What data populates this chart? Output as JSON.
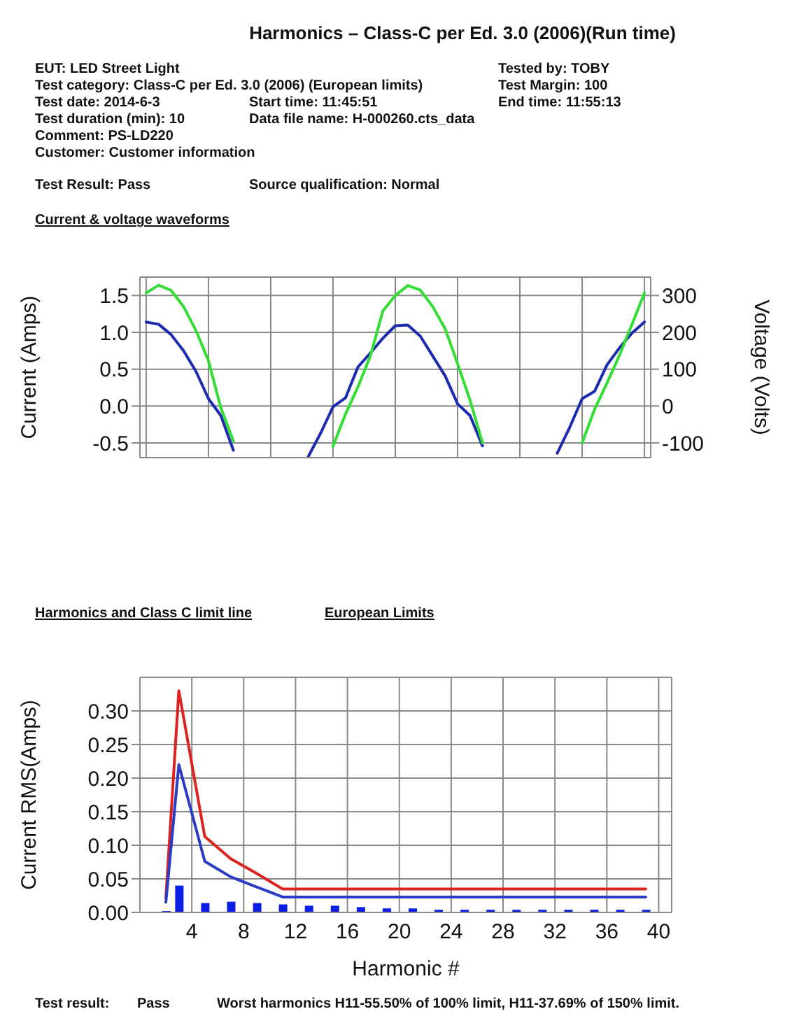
{
  "chart_data": [
    {
      "type": "line",
      "title": "Harmonics – Class-C per Ed. 3.0 (2006)(Run time)",
      "subtitle": "Current & voltage waveforms",
      "annotations": [
        "EUT: LED Street Light",
        "Tested by: TOBY",
        "Test category: Class-C per Ed. 3.0 (2006) (European limits)",
        "Test Margin: 100",
        "Test date: 2014-6-3",
        "Start time: 11:45:51",
        "End time: 11:55:13",
        "Test duration (min): 10",
        "Data file name: H-000260.cts_data",
        "Comment: PS-LD220",
        "Customer: Customer information",
        "Test Result: Pass",
        "Source qualification: Normal"
      ],
      "ylabel": "Current (Amps)",
      "y2label": "Voltage (Volts)",
      "categories": [
        null,
        null,
        null,
        null,
        null,
        null,
        null,
        null,
        null,
        null,
        null,
        null,
        null,
        null,
        null,
        null,
        null,
        null,
        null,
        null,
        null,
        null,
        null,
        null,
        null,
        null,
        null,
        null,
        null,
        null,
        null,
        null,
        null,
        null,
        null,
        null,
        null,
        null,
        null,
        null,
        null
      ],
      "ylim": [
        -0.7,
        1.75
      ],
      "yticks": [
        -0.5,
        {
          "value": 0,
          "label": "0.0"
        },
        0.5,
        {
          "value": 1,
          "label": "1.0"
        },
        1.5
      ],
      "y2lim": [
        -140,
        350
      ],
      "y2ticks": [
        -100,
        0,
        100,
        200,
        300
      ],
      "grid": true,
      "marker": "none",
      "series": [
        {
          "color": "#1c2bb0",
          "values": [
            1.14,
            1.11,
            0.97,
            0.75,
            0.47,
            0.1,
            -0.13,
            -0.6,
            null,
            null,
            null,
            null,
            null,
            null,
            null,
            null,
            null,
            null,
            null,
            null,
            null,
            null,
            null,
            null,
            null,
            null,
            null,
            null,
            null,
            null,
            null,
            null,
            null,
            null,
            null,
            null,
            null,
            null,
            null,
            null,
            null
          ]
        },
        {
          "color": "#1c2bb0",
          "values": [
            null,
            null,
            null,
            null,
            null,
            null,
            null,
            null,
            null,
            null,
            null,
            null,
            null,
            -0.69,
            -0.37,
            -0.01,
            0.11,
            0.53,
            0.72,
            0.92,
            1.09,
            1.1,
            0.95,
            0.68,
            0.41,
            0.03,
            -0.13,
            -0.54,
            null,
            null,
            null,
            null,
            null,
            null,
            null,
            null,
            null,
            null,
            null,
            null,
            null
          ]
        },
        {
          "color": "#1c2bb0",
          "values": [
            null,
            null,
            null,
            null,
            null,
            null,
            null,
            null,
            null,
            null,
            null,
            null,
            null,
            null,
            null,
            null,
            null,
            null,
            null,
            null,
            null,
            null,
            null,
            null,
            null,
            null,
            null,
            null,
            null,
            null,
            null,
            null,
            null,
            -0.64,
            -0.29,
            0.1,
            0.2,
            0.56,
            0.79,
            0.99,
            1.14
          ]
        },
        {
          "color": "#33dd33",
          "axis": "y2",
          "values": [
            307,
            328,
            314,
            270,
            205,
            123,
            -5,
            -95,
            null,
            null,
            null,
            null,
            null,
            null,
            null,
            null,
            null,
            null,
            null,
            null,
            null,
            null,
            null,
            null,
            null,
            null,
            null,
            null,
            null,
            null,
            null,
            null,
            null,
            null,
            null,
            null,
            null,
            null,
            null,
            null,
            null
          ]
        },
        {
          "color": "#33dd33",
          "axis": "y2",
          "values": [
            null,
            null,
            null,
            null,
            null,
            null,
            null,
            null,
            null,
            null,
            null,
            null,
            null,
            null,
            null,
            -109,
            -22,
            52,
            136,
            258,
            300,
            327,
            315,
            270,
            210,
            115,
            16,
            -100,
            null,
            null,
            null,
            null,
            null,
            null,
            null,
            null,
            null,
            null,
            null,
            null,
            null
          ]
        },
        {
          "color": "#33dd33",
          "axis": "y2",
          "values": [
            null,
            null,
            null,
            null,
            null,
            null,
            null,
            null,
            null,
            null,
            null,
            null,
            null,
            null,
            null,
            null,
            null,
            null,
            null,
            null,
            null,
            null,
            null,
            null,
            null,
            null,
            null,
            null,
            null,
            null,
            null,
            null,
            null,
            null,
            null,
            -100,
            -9,
            63,
            138,
            222,
            307
          ]
        }
      ]
    },
    {
      "type": "bar",
      "title": "Harmonics and Class C limit line",
      "subtitle": "European Limits",
      "xlabel": "Harmonic #",
      "ylabel": "Current RMS(Amps)",
      "annotations": [
        "Test result:",
        "Pass",
        "Worst harmonics H11-55.50% of 100% limit, H11-37.69% of 150% limit."
      ],
      "xlim": [
        0,
        41
      ],
      "xticks": [
        4,
        8,
        12,
        16,
        20,
        24,
        28,
        32,
        36,
        40
      ],
      "ylim": [
        0,
        0.35
      ],
      "yticks": [
        {
          "value": 0,
          "label": "0.00"
        },
        {
          "value": 0.05,
          "label": "0.05"
        },
        {
          "value": 0.1,
          "label": "0.10"
        },
        {
          "value": 0.15,
          "label": "0.15"
        },
        {
          "value": 0.2,
          "label": "0.20"
        },
        {
          "value": 0.25,
          "label": "0.25"
        },
        {
          "value": 0.3,
          "label": "0.30"
        }
      ],
      "grid": true,
      "marker": "none",
      "series": [
        {
          "color": "#0a1ee6",
          "x": [
            2,
            3,
            5,
            7,
            9,
            11,
            13,
            15,
            17,
            19,
            21,
            23,
            25,
            27,
            29,
            31,
            33,
            35,
            37,
            39
          ],
          "values": [
            0.002,
            0.04,
            0.014,
            0.016,
            0.014,
            0.012,
            0.01,
            0.01,
            0.008,
            0.006,
            0.006,
            0.004,
            0.004,
            0.004,
            0.004,
            0.004,
            0.004,
            0.004,
            0.004,
            0.004
          ]
        },
        {
          "type": "line",
          "color": "#dd2222",
          "x": [
            2,
            3,
            5,
            7,
            9,
            11,
            39
          ],
          "values": [
            0.022,
            0.33,
            0.113,
            0.08,
            0.058,
            0.035,
            0.035
          ]
        },
        {
          "type": "line",
          "color": "#2a3cc8",
          "x": [
            2,
            3,
            5,
            7,
            9,
            11,
            39
          ],
          "values": [
            0.015,
            0.22,
            0.076,
            0.053,
            0.038,
            0.023,
            0.023
          ]
        }
      ]
    }
  ]
}
